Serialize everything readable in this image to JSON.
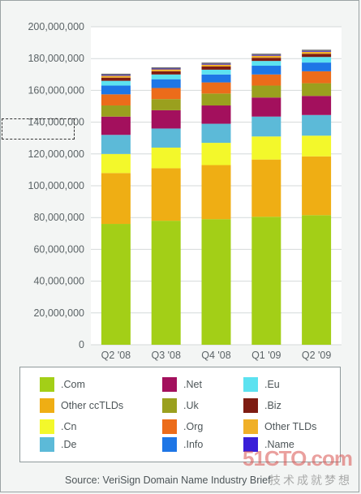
{
  "chart_data": {
    "type": "bar",
    "stacked": true,
    "categories": [
      "Q2 '08",
      "Q3 '08",
      "Q4 '08",
      "Q1 '09",
      "Q2 '09"
    ],
    "y_ticks": [
      "0",
      "20,000,000",
      "40,000,000",
      "60,000,000",
      "80,000,000",
      "100,000,000",
      "120,000,000",
      "140,000,000",
      "160,000,000",
      "180,000,000",
      "200,000,000"
    ],
    "ylim": [
      0,
      200000000
    ],
    "grid": true,
    "legend_position": "bottom",
    "series": [
      {
        "name": ".Com",
        "color": "#a3cf17",
        "values": [
          76000000,
          78000000,
          79000000,
          80500000,
          81500000
        ]
      },
      {
        "name": "Other ccTLDs",
        "color": "#efae14",
        "values": [
          32000000,
          33000000,
          34000000,
          36000000,
          37000000
        ]
      },
      {
        "name": ".Cn",
        "color": "#f3f82b",
        "values": [
          12000000,
          13000000,
          14000000,
          14500000,
          13000000
        ]
      },
      {
        "name": ".De",
        "color": "#5cbad8",
        "values": [
          12000000,
          12000000,
          12000000,
          12500000,
          13000000
        ]
      },
      {
        "name": ".Net",
        "color": "#a3105d",
        "values": [
          11500000,
          11500000,
          11500000,
          12000000,
          12000000
        ]
      },
      {
        "name": ".Uk",
        "color": "#9aa01e",
        "values": [
          7000000,
          7000000,
          7500000,
          7500000,
          8000000
        ]
      },
      {
        "name": ".Org",
        "color": "#ec6c1a",
        "values": [
          7000000,
          7000000,
          7000000,
          7000000,
          7500000
        ]
      },
      {
        "name": ".Info",
        "color": "#1e76e6",
        "values": [
          5500000,
          5500000,
          5000000,
          5500000,
          5500000
        ]
      },
      {
        "name": ".Eu",
        "color": "#5ce2f0",
        "values": [
          3000000,
          3000000,
          3000000,
          3000000,
          3500000
        ]
      },
      {
        "name": ".Biz",
        "color": "#7e1c12",
        "values": [
          2000000,
          2000000,
          2000000,
          2000000,
          2000000
        ]
      },
      {
        "name": "Other TLDs",
        "color": "#f0b028",
        "values": [
          1200000,
          1200000,
          1200000,
          1300000,
          1300000
        ]
      },
      {
        "name": ".Name",
        "color": "#3a1fd8",
        "values": [
          500000,
          500000,
          500000,
          500000,
          500000
        ]
      }
    ],
    "source": "Source: VeriSign Domain Name Industry Brief"
  },
  "watermark": {
    "main": "51CTO.com",
    "sub": "技术成就梦想"
  }
}
